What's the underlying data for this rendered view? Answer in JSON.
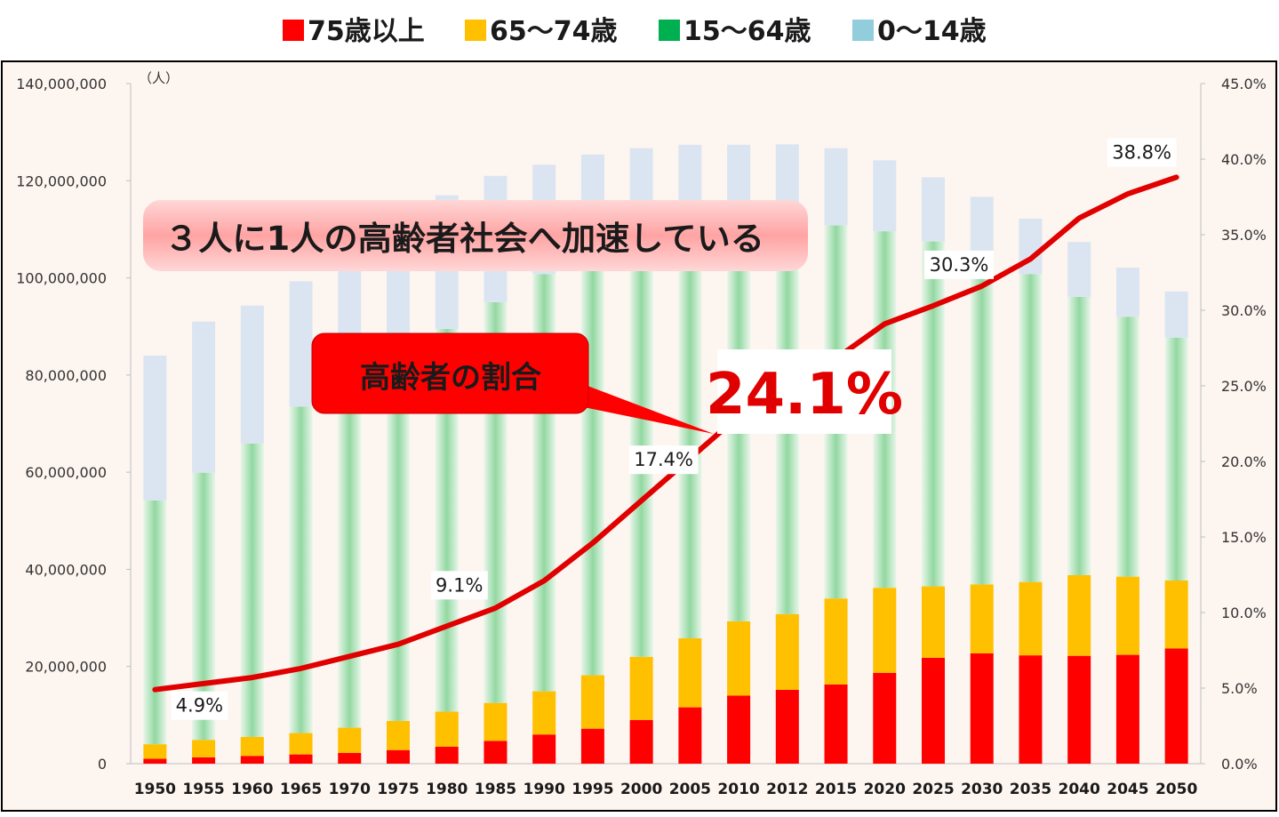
{
  "chart_data": {
    "type": "bar",
    "stacked": true,
    "legend": [
      {
        "name": "75歳以上",
        "color": "#ff0000"
      },
      {
        "name": "65〜74歳",
        "color": "#ffc000"
      },
      {
        "name": "15〜64歳",
        "color": "#00b050"
      },
      {
        "name": "0〜14歳",
        "color": "#92cddc"
      }
    ],
    "legend_position": "top",
    "unit_label": "（人）",
    "categories": [
      "1950",
      "1955",
      "1960",
      "1965",
      "1970",
      "1975",
      "1980",
      "1985",
      "1990",
      "1995",
      "2000",
      "2005",
      "2010",
      "2012",
      "2015",
      "2020",
      "2025",
      "2030",
      "2035",
      "2040",
      "2045",
      "2050"
    ],
    "series": [
      {
        "name": "75歳以上",
        "color": "#ff0000",
        "values": [
          1000000,
          1300000,
          1600000,
          1900000,
          2200000,
          2800000,
          3500000,
          4700000,
          6000000,
          7200000,
          9000000,
          11600000,
          14000000,
          15200000,
          16300000,
          18700000,
          21800000,
          22700000,
          22300000,
          22200000,
          22400000,
          23700000
        ]
      },
      {
        "name": "65〜74歳",
        "color": "#ffc000",
        "values": [
          3000000,
          3600000,
          3900000,
          4400000,
          5200000,
          6000000,
          7200000,
          7800000,
          8900000,
          11000000,
          13000000,
          14200000,
          15300000,
          15600000,
          17700000,
          17500000,
          14700000,
          14200000,
          15100000,
          16600000,
          16100000,
          14000000
        ]
      },
      {
        "name": "15〜64歳",
        "color": "#00b050",
        "values": [
          50200000,
          55000000,
          60400000,
          67200000,
          71100000,
          75800000,
          78800000,
          82500000,
          85900000,
          87200000,
          86200000,
          84100000,
          81700000,
          79300000,
          76800000,
          73400000,
          71000000,
          67800000,
          63400000,
          57300000,
          53500000,
          50000000
        ]
      },
      {
        "name": "0〜14歳",
        "color": "#92cddc",
        "values": [
          29800000,
          31100000,
          28400000,
          25800000,
          25100000,
          27200000,
          27500000,
          26000000,
          22500000,
          20000000,
          18500000,
          17500000,
          16400000,
          17400000,
          15900000,
          14600000,
          13200000,
          12000000,
          11400000,
          11300000,
          10100000,
          9500000
        ]
      },
      {
        "name": "高齢者の割合",
        "color": "#ff0000",
        "axis": "right",
        "values": [
          4.9,
          5.3,
          5.7,
          6.3,
          7.1,
          7.9,
          9.1,
          10.3,
          12.1,
          14.6,
          17.4,
          20.2,
          23.0,
          24.1,
          26.8,
          29.1,
          30.3,
          31.6,
          33.4,
          36.1,
          37.7,
          38.8
        ]
      }
    ],
    "ylim": [
      0,
      140000000
    ],
    "y_ticks": [
      "0",
      "20,000,000",
      "40,000,000",
      "60,000,000",
      "80,000,000",
      "100,000,000",
      "120,000,000",
      "140,000,000"
    ],
    "y2lim": [
      0,
      45
    ],
    "y2_ticks": [
      "0.0%",
      "5.0%",
      "10.0%",
      "15.0%",
      "20.0%",
      "25.0%",
      "30.0%",
      "35.0%",
      "40.0%",
      "45.0%"
    ],
    "data_labels": [
      {
        "category": "1950",
        "text": "4.9%"
      },
      {
        "category": "1980",
        "text": "9.1%"
      },
      {
        "category": "2000",
        "text": "17.4%"
      },
      {
        "category": "2025",
        "text": "30.3%"
      },
      {
        "category": "2050",
        "text": "38.8%"
      }
    ],
    "big_label": "24.1%",
    "annotations": {
      "headline": "３人に1人の高齢者社会へ加速している",
      "callout": "高齢者の割合"
    }
  }
}
